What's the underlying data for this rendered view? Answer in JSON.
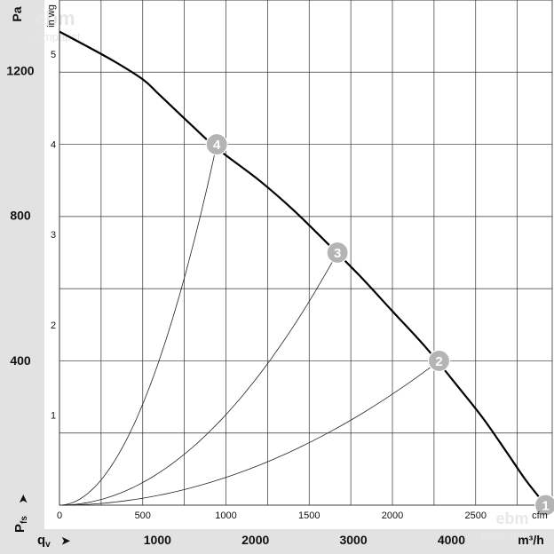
{
  "chart_data": {
    "type": "line",
    "title": "",
    "left_unit": "Pa",
    "inner_unit": "in wg",
    "bottom_unit": "m³/h",
    "inner_x_unit": "cfm",
    "y_axis_symbol": "P",
    "y_axis_symbol_sub": "fs",
    "x_axis_symbol": "q",
    "x_axis_symbol_sub": "v",
    "arrow_glyph": "➤",
    "xlim_cfm": [
      0,
      2960
    ],
    "ylim_inwg": [
      0,
      5.6
    ],
    "cfm_ticks": [
      "0",
      "500",
      "1000",
      "1500",
      "2000",
      "2500"
    ],
    "inwg_ticks": [
      "1",
      "2",
      "3",
      "4",
      "5"
    ],
    "m3h_ticks": [
      "1000",
      "2000",
      "3000",
      "4000"
    ],
    "pa_ticks": [
      "400",
      "800",
      "1200"
    ],
    "watermark_lines": [
      "ebm",
      "ebmpapst"
    ],
    "grid": true,
    "series": [
      {
        "kind": "fan-curve",
        "x_cfm": [
          0,
          300,
          500,
          600,
          800,
          950,
          1200,
          1400,
          1600,
          1800,
          2000,
          2200,
          2400,
          2550,
          2700,
          2800,
          2920
        ],
        "y_inwg": [
          5.25,
          4.95,
          4.72,
          4.55,
          4.2,
          3.95,
          3.6,
          3.28,
          2.92,
          2.55,
          2.15,
          1.75,
          1.3,
          0.95,
          0.55,
          0.28,
          0.0
        ]
      },
      {
        "kind": "system-curve",
        "x_end_cfm": 2280,
        "y_end_inwg": 1.6
      },
      {
        "kind": "system-curve",
        "x_end_cfm": 1670,
        "y_end_inwg": 2.8
      },
      {
        "kind": "system-curve",
        "x_end_cfm": 945,
        "y_end_inwg": 4.0
      }
    ],
    "operating_points": [
      {
        "label": "1",
        "x_cfm": 2920,
        "y_inwg": 0.0
      },
      {
        "label": "2",
        "x_cfm": 2280,
        "y_inwg": 1.6
      },
      {
        "label": "3",
        "x_cfm": 1670,
        "y_inwg": 2.8
      },
      {
        "label": "4",
        "x_cfm": 945,
        "y_inwg": 4.0
      }
    ],
    "colors": {
      "panel": "#e2e2e2",
      "grid": "#333333",
      "curve": "#000000",
      "marker": "#b4b4b4"
    }
  }
}
